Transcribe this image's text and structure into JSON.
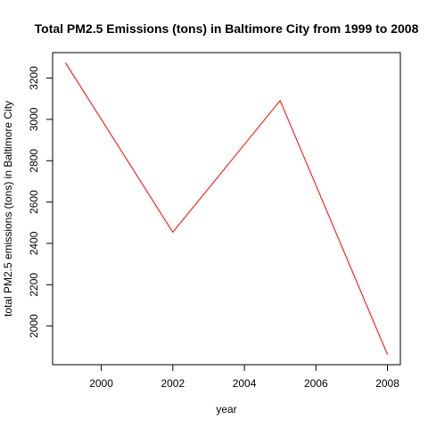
{
  "chart_data": {
    "type": "line",
    "title": "Total PM2.5 Emissions (tons) in Baltimore City from 1999 to 2008",
    "xlabel": "year",
    "ylabel": "total PM2.5 emissions (tons) in Baltimore City",
    "x": [
      1999,
      2002,
      2005,
      2008
    ],
    "series": [
      {
        "values": [
          3274,
          2454,
          3091,
          1862
        ],
        "color": "#ff0000"
      }
    ],
    "xlim": [
      1998.64,
      2008.36
    ],
    "ylim": [
      1812.9,
      3323.3
    ],
    "x_ticks": [
      2000,
      2002,
      2004,
      2006,
      2008
    ],
    "x_tick_labels": [
      "2000",
      "2002",
      "2004",
      "2006",
      "2008"
    ],
    "y_ticks": [
      2000,
      2200,
      2400,
      2600,
      2800,
      3000,
      3200
    ],
    "y_tick_labels": [
      "2000",
      "2200",
      "2400",
      "2600",
      "2800",
      "3000",
      "3200"
    ],
    "grid": false,
    "legend": "none"
  }
}
